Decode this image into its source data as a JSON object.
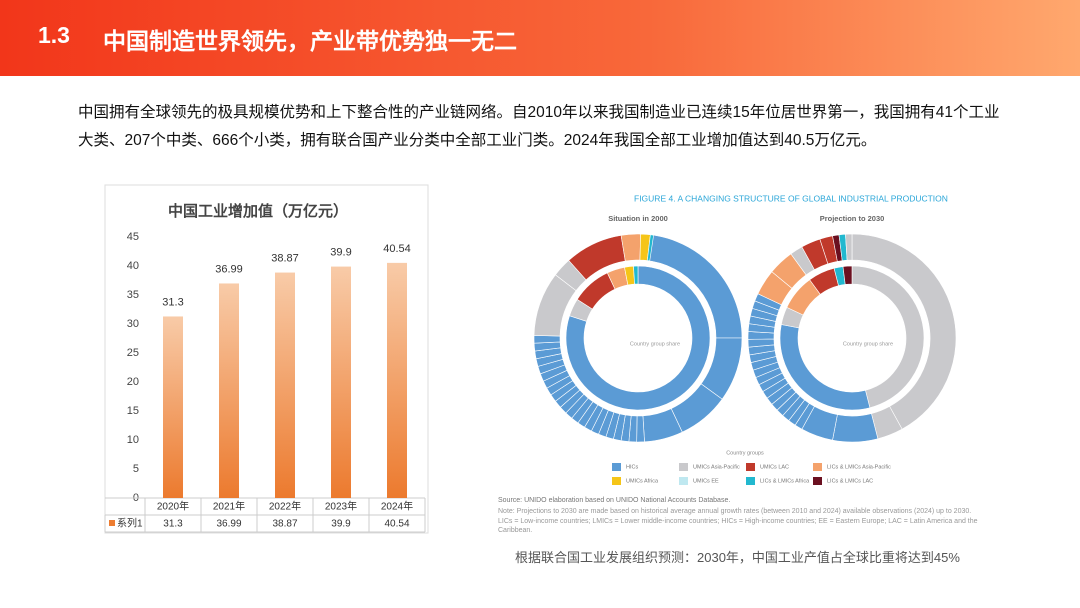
{
  "header": {
    "number": "1.3",
    "title": "中国制造世界领先，产业带优势独一无二"
  },
  "intro": "中国拥有全球领先的极具规模优势和上下整合性的产业链网络。自2010年以来我国制造业已连续15年位居世界第一，我国拥有41个工业大类、207个中类、666个小类，拥有联合国产业分类中全部工业门类。2024年我国全部工业增加值达到40.5万亿元。",
  "chart_data": {
    "type": "bar",
    "title": "中国工业增加值（万亿元）",
    "categories": [
      "2020年",
      "2021年",
      "2022年",
      "2023年",
      "2024年"
    ],
    "series": [
      {
        "name": "系列1",
        "color": "#ed7d31",
        "values": [
          31.3,
          36.99,
          38.87,
          39.9,
          40.54
        ]
      }
    ],
    "ylim": [
      0,
      45
    ],
    "yticks": [
      0,
      5,
      10,
      15,
      20,
      25,
      30,
      35,
      40,
      45
    ],
    "grid": false,
    "data_table": true
  },
  "figure": {
    "title": "FIGURE 4. A CHANGING STRUCTURE OF GLOBAL INDUSTRIAL PRODUCTION",
    "panels": [
      "Situation in 2000",
      "Projection to 2030"
    ],
    "center_label": "Country group share",
    "legend_title": "Country groups",
    "legend": [
      "HICs",
      "UMICs Asia-Pacific",
      "UMICs LAC",
      "LICs & LMICs Asia-Pacific",
      "UMICs Africa",
      "UMICs EE",
      "LICs & LMICs Africa",
      "LICs & LMICs LAC"
    ],
    "source": "Source: UNIDO elaboration based on UNIDO National Accounts Database.",
    "note": "Note: Projections to 2030 are made based on historical average annual growth rates (between 2010 and 2024) available observations (2024) up to 2030. LICs = Low-income countries; LMICs = Lower middle-income countries; HICs = High-income countries; EE = Eastern Europe; LAC = Latin America and the Caribbean."
  },
  "caption": "根据联合国工业发展组织预测：2030年，中国工业产值占全球比重将达到45%"
}
